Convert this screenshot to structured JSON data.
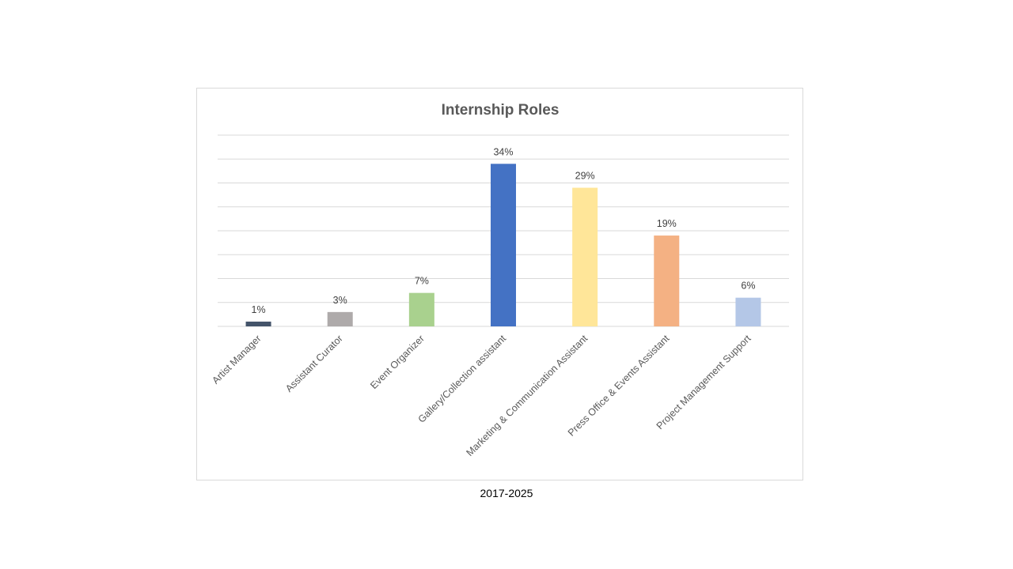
{
  "caption": "2017-2025",
  "chart_data": {
    "type": "bar",
    "title": "Internship Roles",
    "xlabel": "",
    "ylabel": "",
    "categories": [
      "Artist Manager",
      "Assistant Curator",
      "Event Organizer",
      "Gallery/Collection assistant",
      "Marketing & Communication Assistant",
      "Press Office & Events Assistant",
      "Project Management Support"
    ],
    "values": [
      1,
      3,
      7,
      34,
      29,
      19,
      6
    ],
    "data_labels": [
      "1%",
      "3%",
      "7%",
      "34%",
      "29%",
      "19%",
      "6%"
    ],
    "colors": [
      "#44546a",
      "#aeaaaa",
      "#a9d18e",
      "#4472c4",
      "#ffe699",
      "#f4b183",
      "#b4c7e7"
    ],
    "ylim": [
      0,
      40
    ],
    "grid": true,
    "legend": "none"
  }
}
